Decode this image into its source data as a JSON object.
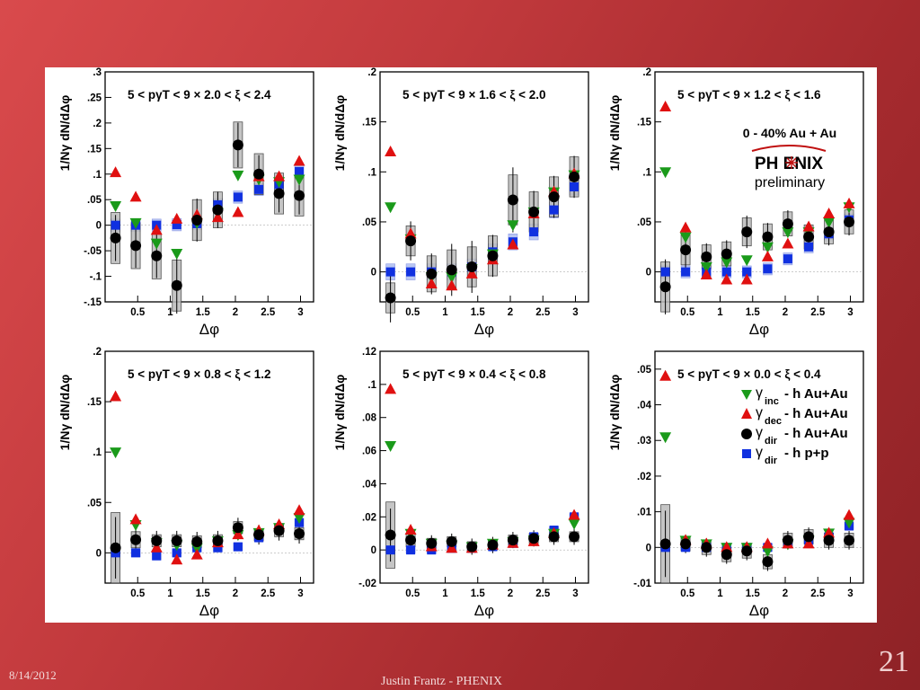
{
  "footer": {
    "date": "8/14/2012",
    "author": "Justin Frantz - PHENIX",
    "slide_number": "21"
  },
  "colors": {
    "inc": "#1a9a1a",
    "dec": "#e01010",
    "dir": "#000000",
    "pp": "#1030e0",
    "pp_band": "#a8b8f0",
    "sys_box": "#bcbcbc"
  },
  "overlay": {
    "centrality": "0 - 40% Au + Au",
    "logo": "PH ENIX",
    "preliminary": "preliminary"
  },
  "legend": [
    {
      "symbol": "γ",
      "sub": "inc",
      "label": "- h Au+Au",
      "series": "inc"
    },
    {
      "symbol": "γ",
      "sub": "dec",
      "label": "- h Au+Au",
      "series": "dec"
    },
    {
      "symbol": "γ",
      "sub": "dir",
      "label": "- h Au+Au",
      "series": "dir"
    },
    {
      "symbol": "γ",
      "sub": "dir",
      "label": "- h p+p",
      "series": "pp"
    }
  ],
  "chart_data": [
    {
      "type": "scatter",
      "title": "5 < pγT < 9 × 2.0 < ξ < 2.4",
      "xlabel": "Δφ",
      "ylabel": "1/Nγ dN/dΔφ",
      "xlim": [
        0,
        3.2
      ],
      "ylim": [
        -0.15,
        0.3
      ],
      "xticks": [
        0.5,
        1,
        1.5,
        2,
        2.5,
        3
      ],
      "yticks": [
        -0.15,
        -0.1,
        -0.05,
        0,
        0.05,
        0.1,
        0.15,
        0.2,
        0.25,
        0.3
      ],
      "x": [
        0.16,
        0.47,
        0.79,
        1.1,
        1.41,
        1.73,
        2.04,
        2.36,
        2.67,
        2.98
      ],
      "series": [
        {
          "name": "γinc - h Au+Au",
          "key": "inc",
          "values": [
            0.038,
            0.005,
            -0.035,
            -0.055,
            0.005,
            0.025,
            0.098,
            0.09,
            0.085,
            0.09
          ]
        },
        {
          "name": "γdec - h Au+Au",
          "key": "dec",
          "values": [
            0.103,
            0.055,
            -0.01,
            0.012,
            0.02,
            0.015,
            0.025,
            0.095,
            0.095,
            0.125
          ]
        },
        {
          "name": "γdir - h Au+Au",
          "key": "dir",
          "values": [
            -0.025,
            -0.04,
            -0.06,
            -0.118,
            0.01,
            0.03,
            0.157,
            0.1,
            0.062,
            0.058
          ],
          "sys": [
            0.05,
            0.045,
            0.045,
            0.05,
            0.04,
            0.035,
            0.045,
            0.04,
            0.04,
            0.04
          ],
          "err": [
            0.03,
            0.03,
            0.03,
            0.04,
            0.03,
            0.025,
            0.03,
            0.025,
            0.025,
            0.025
          ]
        },
        {
          "name": "γdir - h p+p",
          "key": "pp",
          "values": [
            0,
            0,
            0,
            0.001,
            0.003,
            0.04,
            0.055,
            0.07,
            0.08,
            0.105
          ],
          "band": 0.012
        }
      ]
    },
    {
      "type": "scatter",
      "title": "5 < pγT < 9 × 1.6 < ξ < 2.0",
      "xlabel": "Δφ",
      "ylabel": "1/Nγ dN/dΔφ",
      "xlim": [
        0,
        3.2
      ],
      "ylim": [
        -0.03,
        0.2
      ],
      "xticks": [
        0.5,
        1,
        1.5,
        2,
        2.5,
        3
      ],
      "yticks": [
        0,
        0.05,
        0.1,
        0.15,
        0.2
      ],
      "x": [
        0.16,
        0.47,
        0.79,
        1.1,
        1.41,
        1.73,
        2.04,
        2.36,
        2.67,
        2.98
      ],
      "series": [
        {
          "name": "γinc - h Au+Au",
          "key": "inc",
          "values": [
            0.065,
            0.033,
            -0.005,
            -0.005,
            0.003,
            0.018,
            0.047,
            0.06,
            0.08,
            0.097
          ]
        },
        {
          "name": "γdec - h Au+Au",
          "key": "dec",
          "values": [
            0.12,
            0.038,
            -0.012,
            -0.014,
            -0.002,
            0.012,
            0.027,
            0.058,
            0.08,
            0.098
          ]
        },
        {
          "name": "γdir - h Au+Au",
          "key": "dir",
          "values": [
            -0.026,
            0.031,
            -0.002,
            0.002,
            0.005,
            0.016,
            0.072,
            0.06,
            0.075,
            0.095
          ],
          "sys": [
            0.015,
            0.015,
            0.018,
            0.02,
            0.02,
            0.02,
            0.025,
            0.02,
            0.02,
            0.02
          ],
          "err": [
            0.02,
            0.015,
            0.015,
            0.02,
            0.02,
            0.015,
            0.025,
            0.015,
            0.015,
            0.015
          ]
        },
        {
          "name": "γdir - h p+p",
          "key": "pp",
          "values": [
            0,
            0,
            0,
            0,
            0.005,
            0.02,
            0.03,
            0.04,
            0.062,
            0.085
          ],
          "band": 0.008
        }
      ]
    },
    {
      "type": "scatter",
      "title": "5 < pγT < 9 × 1.2 < ξ < 1.6",
      "xlabel": "Δφ",
      "ylabel": "1/Nγ dN/dΔφ",
      "xlim": [
        0,
        3.2
      ],
      "ylim": [
        -0.03,
        0.2
      ],
      "xticks": [
        0.5,
        1,
        1.5,
        2,
        2.5,
        3
      ],
      "yticks": [
        0,
        0.05,
        0.1,
        0.15,
        0.2
      ],
      "x": [
        0.16,
        0.47,
        0.79,
        1.1,
        1.41,
        1.73,
        2.04,
        2.36,
        2.67,
        2.98
      ],
      "series": [
        {
          "name": "γinc - h Au+Au",
          "key": "inc",
          "values": [
            0.1,
            0.035,
            0.005,
            0.01,
            0.012,
            0.025,
            0.04,
            0.04,
            0.05,
            0.065
          ]
        },
        {
          "name": "γdec - h Au+Au",
          "key": "dec",
          "values": [
            0.165,
            0.044,
            -0.003,
            -0.008,
            -0.008,
            0.015,
            0.028,
            0.045,
            0.058,
            0.068
          ]
        },
        {
          "name": "γdir - h Au+Au",
          "key": "dir",
          "values": [
            -0.015,
            0.022,
            0.015,
            0.018,
            0.04,
            0.035,
            0.048,
            0.035,
            0.04,
            0.05
          ],
          "sys": [
            0.025,
            0.015,
            0.012,
            0.012,
            0.014,
            0.013,
            0.012,
            0.012,
            0.012,
            0.012
          ],
          "err": [
            0.02,
            0.015,
            0.01,
            0.01,
            0.012,
            0.01,
            0.01,
            0.01,
            0.01,
            0.01
          ]
        },
        {
          "name": "γdir - h p+p",
          "key": "pp",
          "values": [
            0,
            0,
            0,
            0,
            0,
            0.003,
            0.013,
            0.025,
            0.038,
            0.052
          ],
          "band": 0.006
        }
      ]
    },
    {
      "type": "scatter",
      "title": "5 < pγT < 9 × 0.8 < ξ < 1.2",
      "xlabel": "Δφ",
      "ylabel": "1/Nγ dN/dΔφ",
      "xlim": [
        0,
        3.2
      ],
      "ylim": [
        -0.03,
        0.2
      ],
      "xticks": [
        0.5,
        1,
        1.5,
        2,
        2.5,
        3
      ],
      "yticks": [
        0,
        0.05,
        0.1,
        0.15,
        0.2
      ],
      "x": [
        0.16,
        0.47,
        0.79,
        1.1,
        1.41,
        1.73,
        2.04,
        2.36,
        2.67,
        2.98
      ],
      "series": [
        {
          "name": "γinc - h Au+Au",
          "key": "inc",
          "values": [
            0.1,
            0.028,
            0.01,
            0.008,
            0.005,
            0.012,
            0.018,
            0.02,
            0.025,
            0.035
          ]
        },
        {
          "name": "γdec - h Au+Au",
          "key": "dec",
          "values": [
            0.155,
            0.033,
            0.005,
            -0.007,
            -0.002,
            0.01,
            0.018,
            0.022,
            0.028,
            0.042
          ]
        },
        {
          "name": "γdir - h Au+Au",
          "key": "dir",
          "values": [
            0.005,
            0.013,
            0.012,
            0.012,
            0.011,
            0.012,
            0.025,
            0.018,
            0.022,
            0.019
          ],
          "sys": [
            0.035,
            0.008,
            0.006,
            0.006,
            0.006,
            0.006,
            0.006,
            0.006,
            0.006,
            0.006
          ],
          "err": [
            0.02,
            0.008,
            0.008,
            0.008,
            0.008,
            0.008,
            0.008,
            0.008,
            0.008,
            0.008
          ]
        },
        {
          "name": "γdir - h p+p",
          "key": "pp",
          "values": [
            0,
            0,
            -0.003,
            0,
            0.005,
            0.005,
            0.006,
            0.015,
            0.025,
            0.03
          ],
          "band": 0.004
        }
      ]
    },
    {
      "type": "scatter",
      "title": "5 < pγT < 9 × 0.4 < ξ < 0.8",
      "xlabel": "Δφ",
      "ylabel": "1/Nγ dN/dΔφ",
      "xlim": [
        0,
        3.2
      ],
      "ylim": [
        -0.02,
        0.12
      ],
      "xticks": [
        0.5,
        1,
        1.5,
        2,
        2.5,
        3
      ],
      "yticks": [
        -0.02,
        0,
        0.02,
        0.04,
        0.06,
        0.08,
        0.1,
        0.12
      ],
      "x": [
        0.16,
        0.47,
        0.79,
        1.1,
        1.41,
        1.73,
        2.04,
        2.36,
        2.67,
        2.98
      ],
      "series": [
        {
          "name": "γinc - h Au+Au",
          "key": "inc",
          "values": [
            0.063,
            0.01,
            0.004,
            0.003,
            0.002,
            0.004,
            0.005,
            0.006,
            0.01,
            0.016
          ]
        },
        {
          "name": "γdec - h Au+Au",
          "key": "dec",
          "values": [
            0.097,
            0.012,
            0.002,
            0.001,
            0.001,
            0.003,
            0.004,
            0.005,
            0.01,
            0.021
          ]
        },
        {
          "name": "γdir - h Au+Au",
          "key": "dir",
          "values": [
            0.009,
            0.006,
            0.004,
            0.005,
            0.002,
            0.003,
            0.006,
            0.007,
            0.008,
            0.008
          ],
          "sys": [
            0.02,
            0.004,
            0.003,
            0.003,
            0.003,
            0.003,
            0.003,
            0.003,
            0.003,
            0.003
          ],
          "err": [
            0.01,
            0.004,
            0.004,
            0.004,
            0.004,
            0.004,
            0.004,
            0.004,
            0.004,
            0.004
          ]
        },
        {
          "name": "γdir - h p+p",
          "key": "pp",
          "values": [
            0,
            0,
            0,
            0.001,
            0.001,
            0.002,
            0.004,
            0.008,
            0.012,
            0.02
          ],
          "band": 0.002
        }
      ]
    },
    {
      "type": "scatter",
      "title": "5 < pγT < 9 × 0.0 < ξ < 0.4",
      "xlabel": "Δφ",
      "ylabel": "1/Nγ dN/dΔφ",
      "xlim": [
        0,
        3.2
      ],
      "ylim": [
        -0.01,
        0.055
      ],
      "xticks": [
        0.5,
        1,
        1.5,
        2,
        2.5,
        3
      ],
      "yticks": [
        -0.01,
        0,
        0.01,
        0.02,
        0.03,
        0.04,
        0.05
      ],
      "x": [
        0.16,
        0.47,
        0.79,
        1.1,
        1.41,
        1.73,
        2.04,
        2.36,
        2.67,
        2.98
      ],
      "series": [
        {
          "name": "γinc - h Au+Au",
          "key": "inc",
          "values": [
            0.031,
            0.002,
            0.001,
            0,
            0,
            -0.001,
            0.001,
            0.002,
            0.004,
            0.007
          ]
        },
        {
          "name": "γdec - h Au+Au",
          "key": "dec",
          "values": [
            0.048,
            0.002,
            0.001,
            0,
            0,
            0.001,
            0.001,
            0.001,
            0.004,
            0.009
          ]
        },
        {
          "name": "γdir - h Au+Au",
          "key": "dir",
          "values": [
            0.001,
            0.001,
            0,
            -0.002,
            -0.001,
            -0.004,
            0.002,
            0.003,
            0.002,
            0.002
          ],
          "sys": [
            0.011,
            0.002,
            0.002,
            0.002,
            0.002,
            0.002,
            0.002,
            0.002,
            0.002,
            0.002
          ],
          "err": [
            0.006,
            0.002,
            0.002,
            0.002,
            0.002,
            0.002,
            0.002,
            0.002,
            0.002,
            0.002
          ]
        },
        {
          "name": "γdir - h p+p",
          "key": "pp",
          "values": [
            0,
            0,
            0,
            0,
            0,
            0,
            0.001,
            0.002,
            0.003,
            0.006
          ],
          "band": 0.001
        }
      ]
    }
  ]
}
